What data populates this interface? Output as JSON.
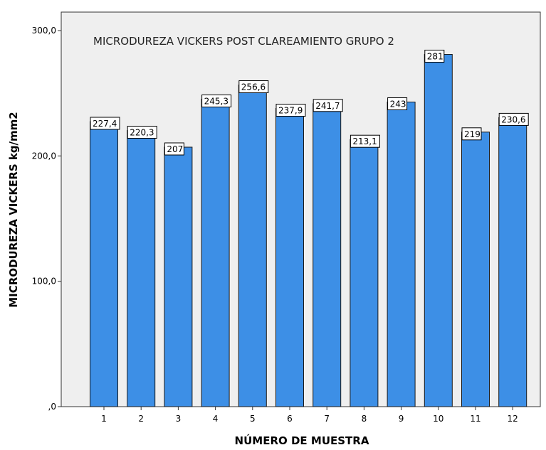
{
  "chart_data": {
    "type": "bar",
    "title": "MICRODUREZA VICKERS POST CLAREAMIENTO GRUPO 2",
    "xlabel": "NÚMERO DE MUESTRA",
    "ylabel": "MICRODUREZA VICKERS kg/mm2",
    "categories": [
      "1",
      "2",
      "3",
      "4",
      "5",
      "6",
      "7",
      "8",
      "9",
      "10",
      "11",
      "12"
    ],
    "values": [
      227.4,
      220.3,
      207,
      245.3,
      256.6,
      237.9,
      241.7,
      213.1,
      243,
      281,
      219,
      230.6
    ],
    "value_labels": [
      "227,4",
      "220,3",
      "207",
      "245,3",
      "256,6",
      "237,9",
      "241,7",
      "213,1",
      "243",
      "281",
      "219",
      "230,6"
    ],
    "ylim": [
      0,
      300
    ],
    "yticks": [
      0,
      100,
      200,
      300
    ],
    "ytick_labels": [
      ",0",
      "100,0",
      "200,0",
      "300,0"
    ],
    "grid": false,
    "colors": {
      "bar": "#3d8fe6",
      "bar_stroke": "#1a1a1a",
      "plot_background": "#efefef",
      "label_background": "#ffffff"
    }
  }
}
